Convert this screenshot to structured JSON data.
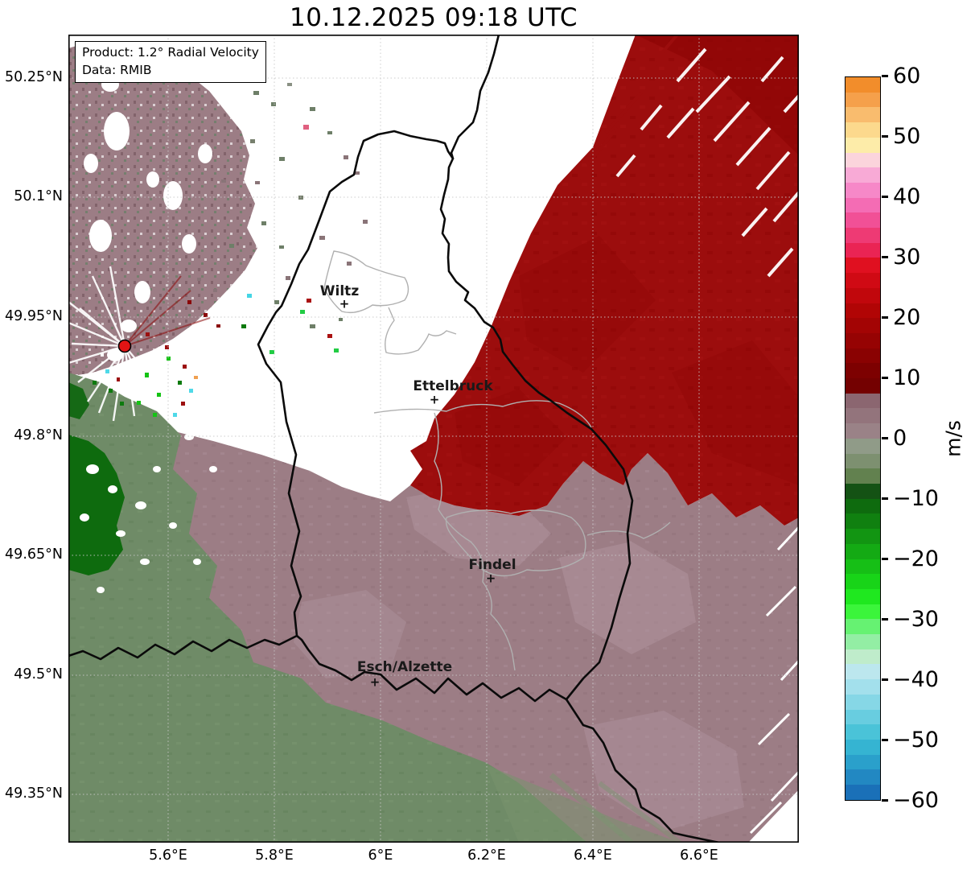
{
  "title": "10.12.2025 09:18 UTC",
  "info_box": {
    "product_line": "Product: 1.2° Radial Velocity",
    "data_line": "Data: RMIB"
  },
  "axes": {
    "x_ticks": [
      "5.6°E",
      "5.8°E",
      "6°E",
      "6.2°E",
      "6.4°E",
      "6.6°E"
    ],
    "y_ticks": [
      "50.25°N",
      "50.1°N",
      "49.95°N",
      "49.8°N",
      "49.65°N",
      "49.5°N",
      "49.35°N"
    ]
  },
  "cities": {
    "marker_glyph": "+",
    "items": [
      {
        "label": "Wiltz"
      },
      {
        "label": "Ettelbruck"
      },
      {
        "label": "Findel"
      },
      {
        "label": "Esch/Alzette"
      }
    ]
  },
  "colorbar": {
    "unit": "m/s",
    "ticks": [
      "60",
      "50",
      "40",
      "30",
      "20",
      "10",
      "0",
      "−10",
      "−20",
      "−30",
      "−40",
      "−50",
      "−60"
    ],
    "range": [
      -60,
      60
    ],
    "band_step": 2.5,
    "bands": [
      "#f28d2b",
      "#f5a04b",
      "#f9bc6e",
      "#fcd98d",
      "#fdeca9",
      "#fbd4dc",
      "#f8aad6",
      "#f688c8",
      "#f46cb4",
      "#f15096",
      "#ee3a74",
      "#ea2454",
      "#e01020",
      "#d00a14",
      "#c1070c",
      "#b10505",
      "#a30404",
      "#960303",
      "#8a0202",
      "#7d0101",
      "#740101",
      "#8b6670",
      "#93747c",
      "#9a8287",
      "#909b88",
      "#7d9070",
      "#62814f",
      "#145214",
      "#0e6b0e",
      "#108010",
      "#129512",
      "#14aa14",
      "#16bf16",
      "#18d418",
      "#1fe81f",
      "#3bf53b",
      "#66f272",
      "#93eea4",
      "#bfeccb",
      "#bce7ee",
      "#a3e0ec",
      "#86d7e6",
      "#68cde0",
      "#4ac3d8",
      "#35b4d2",
      "#2aa0cb",
      "#2288c2",
      "#1a70b8"
    ]
  },
  "map": {
    "radar_site": {
      "symbol": "red-dot",
      "color": "#e31414"
    },
    "regions": [
      {
        "name": "receding-flow-strong",
        "velocity": "+10 to +25 m/s",
        "color": "#9c0d0d",
        "location": "northeast"
      },
      {
        "name": "receding-flow-weak",
        "velocity": "0 to +8 m/s",
        "color": "#9c7d85",
        "location": "south-central and east"
      },
      {
        "name": "approaching-flow-weak",
        "velocity": "0 to −8 m/s",
        "color": "#6f8b67",
        "location": "southwest"
      },
      {
        "name": "approaching-flow-strong",
        "velocity": "−8 to −15 m/s",
        "color": "#0e6b0e",
        "location": "west edge"
      },
      {
        "name": "no-echo",
        "velocity": "no data",
        "color": "#ffffff",
        "location": "north-center"
      }
    ],
    "palette": {
      "country_border": "#0a0a0a",
      "internal_border": "#b0b0b0",
      "gridline": "#c8c8c8"
    }
  }
}
